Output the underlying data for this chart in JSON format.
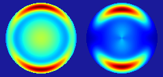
{
  "figsize": [
    2.38,
    1.14
  ],
  "dpi": 100,
  "bg_color": "#1a1a9a",
  "N": 400
}
